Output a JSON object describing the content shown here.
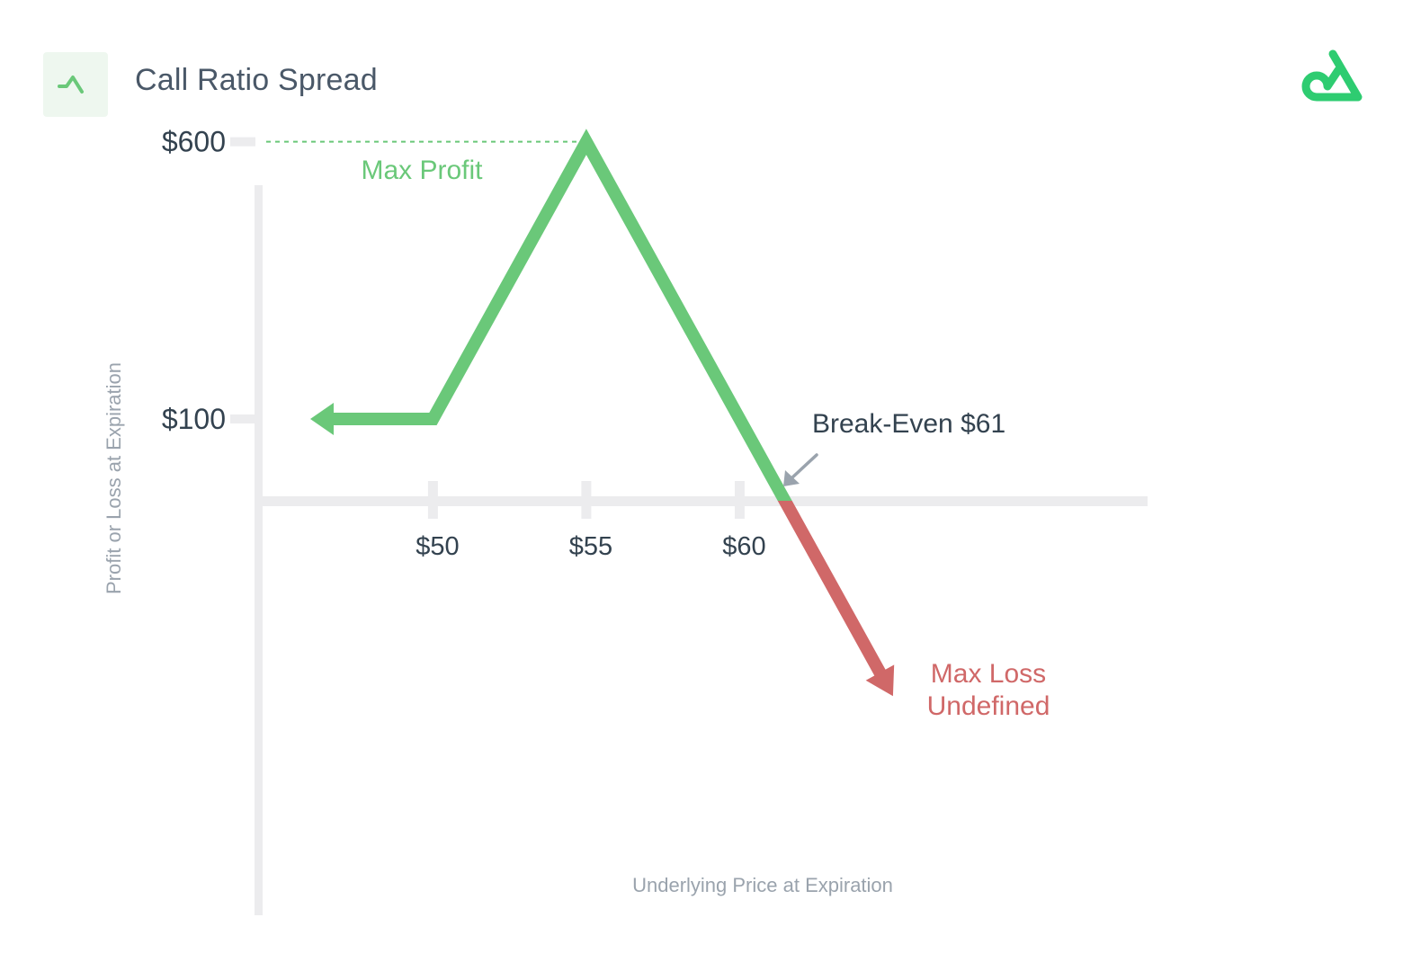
{
  "header": {
    "title": "Call Ratio Spread",
    "strategy_icon": "trend-peak-icon",
    "brand_logo": "brand-logo-icon"
  },
  "colors": {
    "profit": "#6ac879",
    "loss": "#d06868",
    "axis": "#ececee",
    "text_dark": "#33424f",
    "text_muted": "#9aa3ad",
    "brand": "#2ecc71"
  },
  "chart_data": {
    "type": "line",
    "xlabel": "Underlying Price at Expiration",
    "ylabel": "Profit or Loss at Expiration",
    "x_ticks": [
      {
        "value": 50,
        "label": "$50"
      },
      {
        "value": 55,
        "label": "$55"
      },
      {
        "value": 60,
        "label": "$60"
      }
    ],
    "y_ticks": [
      {
        "value": 600,
        "label": "$600"
      },
      {
        "value": 100,
        "label": "$100"
      }
    ],
    "xlim": [
      44.3,
      73.3
    ],
    "ylim": [
      -800,
      700
    ],
    "series": [
      {
        "points": [
          {
            "x": 46,
            "y": 100
          },
          {
            "x": 50,
            "y": 100
          },
          {
            "x": 55,
            "y": 600
          },
          {
            "x": 61,
            "y": 0
          },
          {
            "x": 65,
            "y": -400
          }
        ]
      }
    ],
    "annotations": {
      "max_profit": {
        "label": "Max Profit",
        "value": 600
      },
      "break_even": {
        "label": "Break-Even $61",
        "value": 61
      },
      "max_loss": {
        "line1": "Max Loss",
        "line2": "Undefined"
      }
    }
  }
}
